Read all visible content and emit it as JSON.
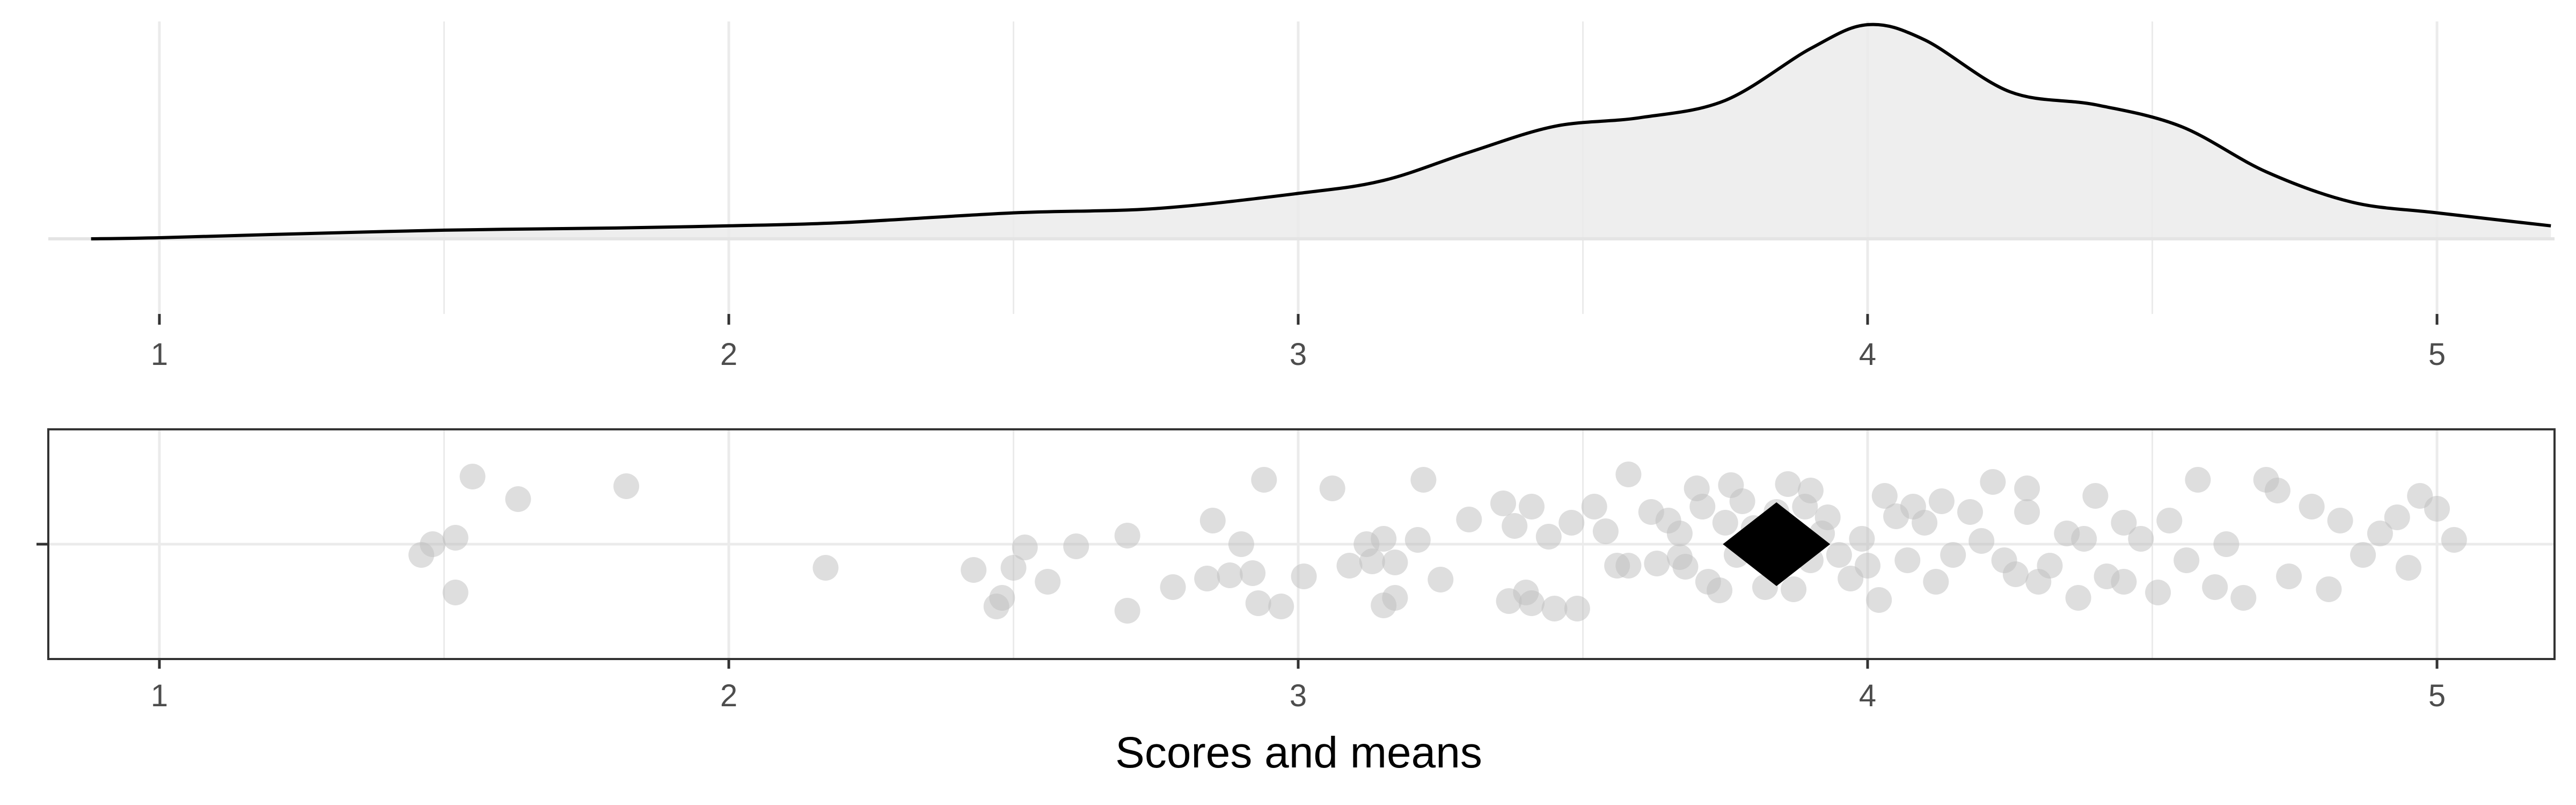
{
  "chart_data": {
    "type": "scatter",
    "xlabel": "Scores and means",
    "x_ticks": [
      "1",
      "2",
      "3",
      "4",
      "5"
    ],
    "xlim": [
      0.8,
      5.2
    ],
    "grid": true,
    "colors": {
      "points": "#bdbdbd",
      "mean_marker": "#000000",
      "density_fill": "#ebebeb",
      "density_line": "#000000",
      "grid": "#ebebeb"
    },
    "density": {
      "x": [
        0.88,
        1.0,
        1.2,
        1.5,
        1.8,
        2.0,
        2.2,
        2.5,
        2.75,
        3.0,
        3.15,
        3.3,
        3.45,
        3.6,
        3.75,
        3.9,
        4.0,
        4.1,
        4.25,
        4.4,
        4.55,
        4.7,
        4.85,
        5.0,
        5.2
      ],
      "y": [
        0.0,
        0.005,
        0.02,
        0.04,
        0.05,
        0.06,
        0.075,
        0.12,
        0.14,
        0.21,
        0.27,
        0.4,
        0.52,
        0.56,
        0.64,
        0.88,
        0.99,
        0.92,
        0.68,
        0.62,
        0.52,
        0.31,
        0.17,
        0.12,
        0.06
      ]
    },
    "mean": 3.84,
    "points": [
      [
        1.46,
        -0.1
      ],
      [
        1.48,
        0.0
      ],
      [
        1.52,
        0.06
      ],
      [
        1.52,
        -0.45
      ],
      [
        1.55,
        0.63
      ],
      [
        1.63,
        0.42
      ],
      [
        1.82,
        0.54
      ],
      [
        2.17,
        -0.22
      ],
      [
        2.43,
        -0.24
      ],
      [
        2.47,
        -0.58
      ],
      [
        2.48,
        -0.5
      ],
      [
        2.5,
        -0.22
      ],
      [
        2.52,
        -0.03
      ],
      [
        2.56,
        -0.35
      ],
      [
        2.61,
        -0.02
      ],
      [
        2.7,
        -0.62
      ],
      [
        2.7,
        0.08
      ],
      [
        2.78,
        -0.4
      ],
      [
        2.84,
        -0.32
      ],
      [
        2.85,
        0.22
      ],
      [
        2.88,
        -0.29
      ],
      [
        2.9,
        0.0
      ],
      [
        2.92,
        -0.27
      ],
      [
        2.93,
        -0.55
      ],
      [
        2.94,
        0.6
      ],
      [
        2.97,
        -0.58
      ],
      [
        3.01,
        -0.3
      ],
      [
        3.06,
        0.52
      ],
      [
        3.09,
        -0.2
      ],
      [
        3.12,
        0.0
      ],
      [
        3.13,
        -0.16
      ],
      [
        3.15,
        0.05
      ],
      [
        3.15,
        -0.57
      ],
      [
        3.17,
        -0.5
      ],
      [
        3.17,
        -0.17
      ],
      [
        3.21,
        0.04
      ],
      [
        3.22,
        0.6
      ],
      [
        3.25,
        -0.33
      ],
      [
        3.3,
        0.23
      ],
      [
        3.36,
        0.38
      ],
      [
        3.37,
        -0.53
      ],
      [
        3.38,
        0.17
      ],
      [
        3.4,
        -0.45
      ],
      [
        3.41,
        -0.55
      ],
      [
        3.41,
        0.35
      ],
      [
        3.44,
        0.07
      ],
      [
        3.45,
        -0.6
      ],
      [
        3.49,
        -0.6
      ],
      [
        3.52,
        0.35
      ],
      [
        3.54,
        0.12
      ],
      [
        3.56,
        -0.2
      ],
      [
        3.58,
        -0.2
      ],
      [
        3.58,
        0.65
      ],
      [
        3.62,
        0.3
      ],
      [
        3.63,
        -0.18
      ],
      [
        3.67,
        0.1
      ],
      [
        3.67,
        -0.12
      ],
      [
        3.68,
        -0.21
      ],
      [
        3.7,
        0.52
      ],
      [
        3.71,
        0.35
      ],
      [
        3.72,
        -0.35
      ],
      [
        3.74,
        -0.43
      ],
      [
        3.75,
        0.2
      ],
      [
        3.76,
        0.55
      ],
      [
        3.77,
        -0.1
      ],
      [
        3.78,
        0.4
      ],
      [
        3.8,
        0.15
      ],
      [
        3.82,
        -0.4
      ],
      [
        3.84,
        0.3
      ],
      [
        3.86,
        0.56
      ],
      [
        3.87,
        -0.42
      ],
      [
        3.89,
        0.35
      ],
      [
        3.9,
        -0.15
      ],
      [
        3.9,
        0.5
      ],
      [
        3.92,
        0.1
      ],
      [
        3.95,
        -0.1
      ],
      [
        3.97,
        -0.32
      ],
      [
        3.99,
        0.05
      ],
      [
        4.0,
        -0.2
      ],
      [
        4.02,
        -0.52
      ],
      [
        4.03,
        0.45
      ],
      [
        4.05,
        0.26
      ],
      [
        4.07,
        -0.15
      ],
      [
        4.08,
        0.35
      ],
      [
        4.1,
        0.2
      ],
      [
        4.13,
        0.4
      ],
      [
        4.15,
        -0.1
      ],
      [
        4.18,
        0.3
      ],
      [
        4.2,
        0.03
      ],
      [
        4.22,
        0.58
      ],
      [
        4.24,
        -0.15
      ],
      [
        4.26,
        -0.28
      ],
      [
        4.28,
        0.3
      ],
      [
        4.3,
        -0.35
      ],
      [
        4.32,
        -0.2
      ],
      [
        4.35,
        0.1
      ],
      [
        4.37,
        -0.5
      ],
      [
        4.4,
        0.45
      ],
      [
        4.42,
        -0.3
      ],
      [
        4.45,
        0.2
      ],
      [
        4.48,
        0.05
      ],
      [
        4.51,
        -0.45
      ],
      [
        4.53,
        0.22
      ],
      [
        4.56,
        -0.15
      ],
      [
        4.58,
        0.6
      ],
      [
        4.61,
        -0.4
      ],
      [
        4.63,
        0.0
      ],
      [
        4.66,
        -0.5
      ],
      [
        4.7,
        0.6
      ],
      [
        4.72,
        0.5
      ],
      [
        4.74,
        -0.3
      ],
      [
        4.78,
        0.35
      ],
      [
        4.81,
        -0.42
      ],
      [
        4.83,
        0.22
      ],
      [
        4.87,
        -0.1
      ],
      [
        4.9,
        0.1
      ],
      [
        4.93,
        0.25
      ],
      [
        4.95,
        -0.22
      ],
      [
        4.97,
        0.45
      ],
      [
        5.0,
        0.33
      ],
      [
        5.03,
        0.04
      ],
      [
        3.48,
        0.2
      ],
      [
        4.12,
        -0.35
      ],
      [
        3.93,
        0.25
      ],
      [
        4.45,
        -0.35
      ],
      [
        4.28,
        0.52
      ],
      [
        3.65,
        0.22
      ],
      [
        4.38,
        0.05
      ]
    ]
  }
}
